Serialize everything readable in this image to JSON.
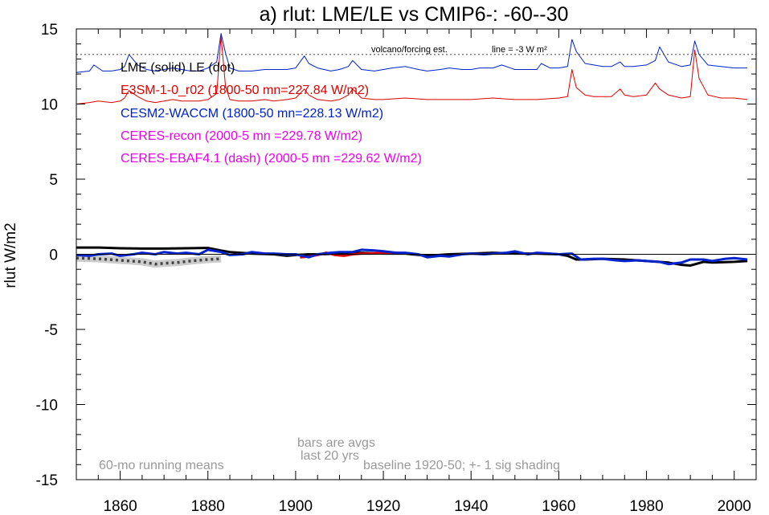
{
  "chart_data": {
    "type": "line",
    "title": "a) rlut: LME/LE vs CMIP6-: -60--30",
    "ylabel": "rlut W/m2",
    "xlim": [
      1850,
      2005
    ],
    "ylim": [
      -15,
      15
    ],
    "x_ticks": [
      1860,
      1880,
      1900,
      1920,
      1940,
      1960,
      1980,
      2000
    ],
    "y_ticks": [
      15,
      10,
      5,
      0,
      -5,
      -10,
      -15
    ],
    "reference_line_label": "volcano/forcing est.",
    "reference_line_value_label": "line = -3 W m²",
    "reference_line_y": 13.3,
    "legend_placement": "top-left",
    "legend": [
      {
        "text": "LME (solid)   LE (dot)",
        "color": "#000000"
      },
      {
        "text": "E3SM-1-0_r02 (1800-50 mn=227.84 W/m2)",
        "color": "#dd0000"
      },
      {
        "text": "CESM2-WACCM (1800-50 mn=228.13 W/m2)",
        "color": "#0022cc"
      },
      {
        "text": "CERES-recon (2000-5 mn =229.78 W/m2)",
        "color": "#ee00ee"
      },
      {
        "text": "CERES-EBAF4.1 (dash) (2000-5 mn =229.62 W/m2)",
        "color": "#ee00ee"
      }
    ],
    "annotations": [
      {
        "text": "bars are avgs",
        "color": "#999999"
      },
      {
        "text": "last 20 yrs",
        "color": "#999999"
      },
      {
        "text": "60-mo running means",
        "color": "#999999"
      },
      {
        "text": "baseline 1920-50; +- 1 sig shading",
        "color": "#999999"
      }
    ],
    "volcanic_series": [
      {
        "legend_ref": 2,
        "color": "#0022cc",
        "x": [
          1850,
          1853,
          1854,
          1856,
          1858,
          1860,
          1861,
          1862,
          1864,
          1866,
          1868,
          1870,
          1872,
          1874,
          1876,
          1878,
          1880,
          1882,
          1883,
          1884,
          1885,
          1887,
          1890,
          1893,
          1895,
          1898,
          1900,
          1902,
          1903,
          1905,
          1908,
          1910,
          1912,
          1913,
          1915,
          1918,
          1920,
          1922,
          1925,
          1928,
          1930,
          1933,
          1935,
          1938,
          1940,
          1942,
          1945,
          1947,
          1950,
          1953,
          1955,
          1956,
          1958,
          1960,
          1962,
          1963,
          1964,
          1966,
          1968,
          1970,
          1972,
          1974,
          1975,
          1977,
          1980,
          1982,
          1983,
          1985,
          1988,
          1990,
          1991,
          1992,
          1994,
          1997,
          2000,
          2003
        ],
        "y": [
          12.1,
          12.2,
          12.6,
          12.2,
          12.2,
          12.3,
          12.5,
          13.3,
          12.6,
          12.3,
          12.2,
          12.3,
          12.4,
          12.3,
          12.2,
          12.2,
          12.4,
          12.8,
          14.7,
          13.4,
          12.4,
          12.2,
          12.2,
          12.3,
          12.3,
          12.3,
          12.4,
          13.2,
          12.7,
          12.4,
          12.2,
          12.3,
          12.5,
          12.9,
          12.3,
          12.2,
          12.3,
          12.4,
          12.5,
          12.3,
          12.2,
          12.3,
          12.4,
          12.3,
          12.3,
          12.4,
          12.4,
          12.6,
          12.3,
          12.3,
          12.3,
          12.7,
          12.4,
          12.4,
          12.5,
          14.3,
          13.5,
          12.7,
          12.6,
          12.5,
          12.5,
          12.8,
          12.5,
          12.5,
          12.6,
          12.9,
          13.8,
          12.8,
          12.5,
          12.6,
          14.2,
          13.3,
          12.6,
          12.5,
          12.4,
          12.4
        ]
      },
      {
        "legend_ref": 1,
        "color": "#dd0000",
        "x": [
          1850,
          1853,
          1855,
          1858,
          1860,
          1861,
          1862,
          1864,
          1866,
          1868,
          1870,
          1872,
          1874,
          1876,
          1878,
          1880,
          1882,
          1883,
          1884,
          1885,
          1887,
          1890,
          1893,
          1895,
          1898,
          1900,
          1902,
          1903,
          1905,
          1908,
          1910,
          1912,
          1913,
          1915,
          1918,
          1920,
          1925,
          1930,
          1935,
          1940,
          1945,
          1950,
          1955,
          1960,
          1962,
          1963,
          1964,
          1966,
          1968,
          1970,
          1972,
          1974,
          1975,
          1977,
          1980,
          1982,
          1983,
          1985,
          1988,
          1990,
          1991,
          1992,
          1994,
          1997,
          2000,
          2003
        ],
        "y": [
          10.0,
          10.1,
          10.2,
          10.1,
          10.2,
          10.4,
          10.9,
          10.5,
          10.2,
          10.1,
          10.2,
          10.3,
          10.2,
          10.2,
          10.2,
          10.3,
          10.7,
          14.5,
          11.2,
          10.3,
          10.2,
          10.2,
          10.3,
          10.2,
          10.3,
          10.4,
          11.0,
          10.6,
          10.3,
          10.2,
          10.3,
          10.6,
          11.0,
          10.4,
          10.3,
          10.3,
          10.4,
          10.3,
          10.3,
          10.3,
          10.4,
          10.3,
          10.3,
          10.4,
          10.5,
          12.3,
          11.1,
          10.6,
          10.5,
          10.5,
          10.5,
          11.0,
          10.6,
          10.5,
          10.6,
          11.4,
          11.0,
          10.6,
          10.4,
          10.5,
          13.6,
          11.7,
          10.6,
          10.4,
          10.4,
          10.3
        ]
      }
    ],
    "anomaly_series": [
      {
        "legend_ref": 0,
        "style": "solid",
        "color": "#000000",
        "x": [
          1850,
          1855,
          1860,
          1865,
          1870,
          1875,
          1880,
          1883,
          1885,
          1890,
          1895,
          1898,
          1900,
          1903,
          1905,
          1910,
          1915,
          1920,
          1925,
          1930,
          1935,
          1940,
          1945,
          1950,
          1955,
          1960,
          1962,
          1964,
          1966,
          1970,
          1975,
          1980,
          1985,
          1988,
          1990,
          1993,
          1995,
          2000,
          2003
        ],
        "y": [
          0.45,
          0.45,
          0.4,
          0.38,
          0.38,
          0.4,
          0.42,
          0.25,
          0.15,
          0.05,
          0.0,
          -0.1,
          -0.05,
          0.0,
          0.0,
          0.05,
          0.1,
          0.05,
          0.05,
          -0.1,
          0.0,
          0.05,
          0.1,
          0.05,
          0.05,
          0.0,
          -0.1,
          -0.35,
          -0.35,
          -0.3,
          -0.35,
          -0.45,
          -0.55,
          -0.7,
          -0.75,
          -0.5,
          -0.55,
          -0.5,
          -0.45
        ]
      },
      {
        "legend_ref": 0,
        "style": "dot",
        "color": "#444444",
        "x": [
          1850,
          1855,
          1860,
          1865,
          1868,
          1870,
          1873,
          1876,
          1880,
          1883
        ],
        "y": [
          -0.25,
          -0.3,
          -0.4,
          -0.5,
          -0.65,
          -0.6,
          -0.55,
          -0.45,
          -0.35,
          -0.3
        ]
      },
      {
        "legend_ref": 1,
        "style": "solid",
        "color": "#dd0000",
        "x": [
          1901,
          1903,
          1905,
          1907,
          1909,
          1911,
          1913,
          1915,
          1917,
          1920,
          1923,
          1926
        ],
        "y": [
          -0.2,
          -0.15,
          -0.05,
          0.1,
          -0.05,
          -0.1,
          0.0,
          0.05,
          0.05,
          0.1,
          0.1,
          0.05
        ]
      },
      {
        "legend_ref": 2,
        "style": "solid",
        "color": "#0022cc",
        "x": [
          1850,
          1853,
          1855,
          1858,
          1860,
          1863,
          1865,
          1868,
          1870,
          1873,
          1875,
          1878,
          1880,
          1883,
          1885,
          1888,
          1890,
          1893,
          1895,
          1898,
          1900,
          1903,
          1905,
          1908,
          1910,
          1913,
          1915,
          1918,
          1920,
          1923,
          1925,
          1928,
          1930,
          1933,
          1935,
          1938,
          1940,
          1943,
          1945,
          1948,
          1950,
          1953,
          1955,
          1958,
          1960,
          1963,
          1965,
          1968,
          1970,
          1973,
          1975,
          1978,
          1980,
          1983,
          1985,
          1988,
          1990,
          1993,
          1995,
          1998,
          2000,
          2003
        ],
        "y": [
          -0.05,
          -0.1,
          0.0,
          0.05,
          -0.1,
          0.0,
          0.1,
          0.0,
          0.15,
          0.05,
          0.1,
          0.0,
          0.3,
          0.15,
          -0.05,
          0.0,
          0.15,
          0.05,
          0.05,
          0.0,
          0.0,
          -0.2,
          0.0,
          0.1,
          0.15,
          0.15,
          0.3,
          0.25,
          0.2,
          0.1,
          0.1,
          0.0,
          -0.2,
          -0.1,
          -0.15,
          0.0,
          0.05,
          0.0,
          0.05,
          0.1,
          0.2,
          0.0,
          0.1,
          0.05,
          0.0,
          0.05,
          -0.35,
          -0.3,
          -0.3,
          -0.4,
          -0.45,
          -0.4,
          -0.45,
          -0.5,
          -0.65,
          -0.55,
          -0.35,
          -0.35,
          -0.45,
          -0.3,
          -0.25,
          -0.35
        ]
      }
    ]
  }
}
